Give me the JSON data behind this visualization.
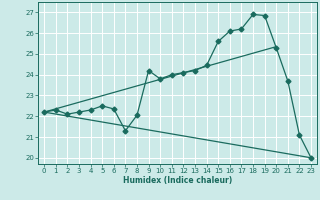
{
  "title": "",
  "xlabel": "Humidex (Indice chaleur)",
  "bg_color": "#cceae8",
  "line_color": "#1a6b5e",
  "grid_color": "#ffffff",
  "xlim": [
    -0.5,
    23.5
  ],
  "ylim": [
    19.7,
    27.5
  ],
  "yticks": [
    20,
    21,
    22,
    23,
    24,
    25,
    26,
    27
  ],
  "xticks": [
    0,
    1,
    2,
    3,
    4,
    5,
    6,
    7,
    8,
    9,
    10,
    11,
    12,
    13,
    14,
    15,
    16,
    17,
    18,
    19,
    20,
    21,
    22,
    23
  ],
  "line1_x": [
    0,
    1,
    2,
    3,
    4,
    5,
    6,
    7,
    8,
    9,
    10,
    11,
    12,
    13,
    14,
    15,
    16,
    17,
    18,
    19,
    20,
    21,
    22,
    23
  ],
  "line1_y": [
    22.2,
    22.3,
    22.1,
    22.2,
    22.3,
    22.5,
    22.35,
    21.3,
    22.05,
    24.2,
    23.8,
    24.0,
    24.1,
    24.2,
    24.45,
    25.6,
    26.1,
    26.2,
    26.9,
    26.85,
    25.3,
    23.7,
    21.1,
    20.0
  ],
  "line2_x": [
    0,
    20
  ],
  "line2_y": [
    22.2,
    25.35
  ],
  "line3_x": [
    0,
    23
  ],
  "line3_y": [
    22.2,
    20.0
  ],
  "marker_size": 2.5,
  "linewidth": 0.9
}
